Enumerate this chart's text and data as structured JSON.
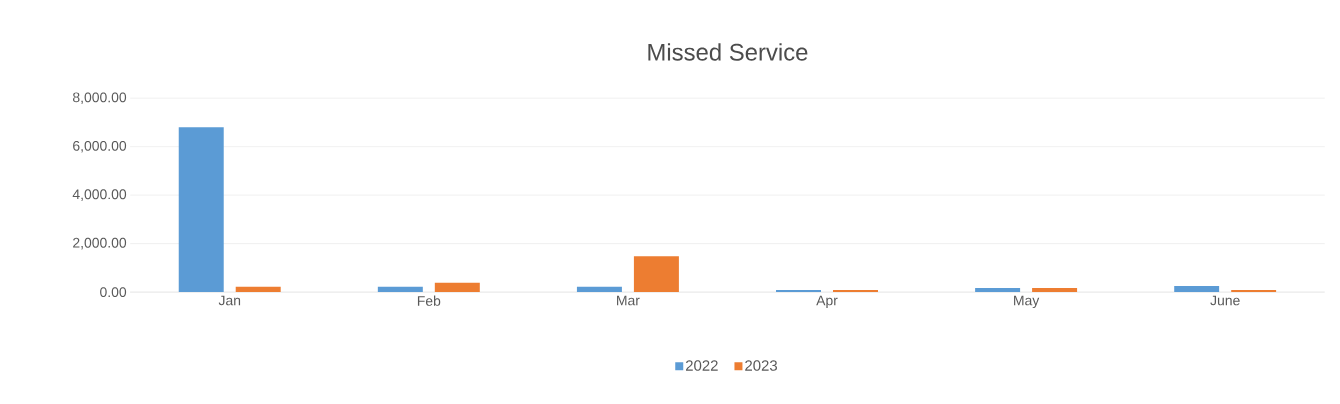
{
  "chart_data": {
    "type": "bar",
    "title": "Missed Service",
    "categories": [
      "Jan",
      "Feb",
      "Mar",
      "Apr",
      "May",
      "June"
    ],
    "series": [
      {
        "name": "2022",
        "color": "#5b9bd5",
        "values": [
          6800,
          220,
          220,
          90,
          165,
          255
        ]
      },
      {
        "name": "2023",
        "color": "#ed7d31",
        "values": [
          220,
          390,
          1480,
          90,
          165,
          90
        ]
      }
    ],
    "ylim": [
      0,
      8000
    ],
    "yticks": [
      {
        "value": 0,
        "label": "0.00"
      },
      {
        "value": 2000,
        "label": "2,000.00"
      },
      {
        "value": 4000,
        "label": "4,000.00"
      },
      {
        "value": 6000,
        "label": "6,000.00"
      },
      {
        "value": 8000,
        "label": "8,000.00"
      }
    ],
    "grid": "y",
    "legend": "bottom"
  }
}
